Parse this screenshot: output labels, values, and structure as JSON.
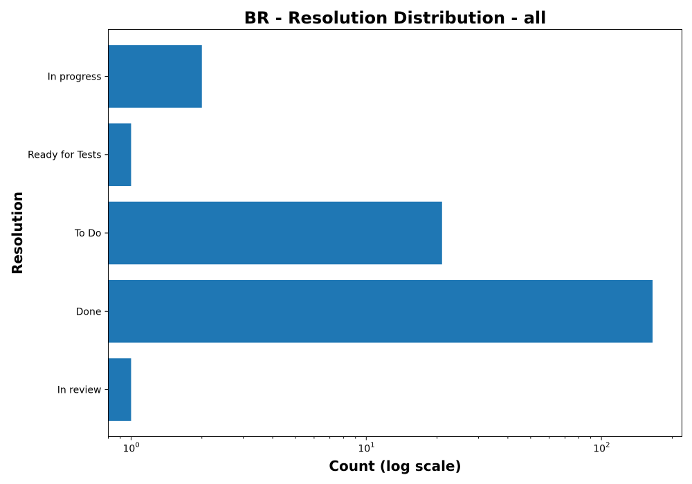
{
  "chart_data": {
    "type": "bar",
    "orientation": "horizontal",
    "title": "BR - Resolution Distribution - all",
    "xlabel": "Count (log scale)",
    "ylabel": "Resolution",
    "x_scale": "log",
    "xlim": [
      0.8,
      220
    ],
    "x_ticks": [
      {
        "base": "10",
        "exp": "0"
      },
      {
        "base": "10",
        "exp": "1"
      },
      {
        "base": "10",
        "exp": "2"
      }
    ],
    "categories": [
      "In progress",
      "Ready for Tests",
      "To Do",
      "Done",
      "In review"
    ],
    "values": [
      2,
      1,
      21,
      165,
      1
    ],
    "bar_color": "#1f77b4",
    "grid": false,
    "legend": "none"
  }
}
